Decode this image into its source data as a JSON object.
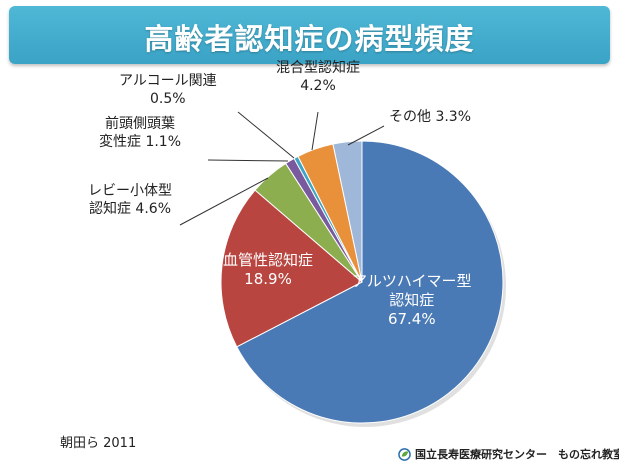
{
  "title": "高齢者認知症の病型頻度",
  "source": "朝田ら 2011",
  "credit": "国立長寿医療研究センター　もの忘れ教室",
  "chart_data": {
    "type": "pie",
    "start_angle_deg": 0,
    "direction": "clockwise",
    "slices": [
      {
        "id": "alzheimer",
        "label_lines": [
          "アルツハイマー型",
          "認知症",
          "67.4%"
        ],
        "value": 67.4,
        "color": "#4a7ab5"
      },
      {
        "id": "vascular",
        "label_lines": [
          "血管性認知症",
          "18.9%"
        ],
        "value": 18.9,
        "color": "#b84540"
      },
      {
        "id": "lewy",
        "label_lines": [
          "レビー小体型",
          "認知症 4.6%"
        ],
        "value": 4.6,
        "color": "#8cae4f"
      },
      {
        "id": "frontotemporal",
        "label_lines": [
          "前頭側頭葉",
          "変性症 1.1%"
        ],
        "value": 1.1,
        "color": "#7a5a9e"
      },
      {
        "id": "alcohol",
        "label_lines": [
          "アルコール関連",
          "0.5%"
        ],
        "value": 0.5,
        "color": "#3fa5c4"
      },
      {
        "id": "mixed",
        "label_lines": [
          "混合型認知症",
          "4.2%"
        ],
        "value": 4.2,
        "color": "#e8913a"
      },
      {
        "id": "other",
        "label_lines": [
          "その他 3.3%"
        ],
        "value": 3.3,
        "color": "#9fb7d8"
      }
    ]
  }
}
